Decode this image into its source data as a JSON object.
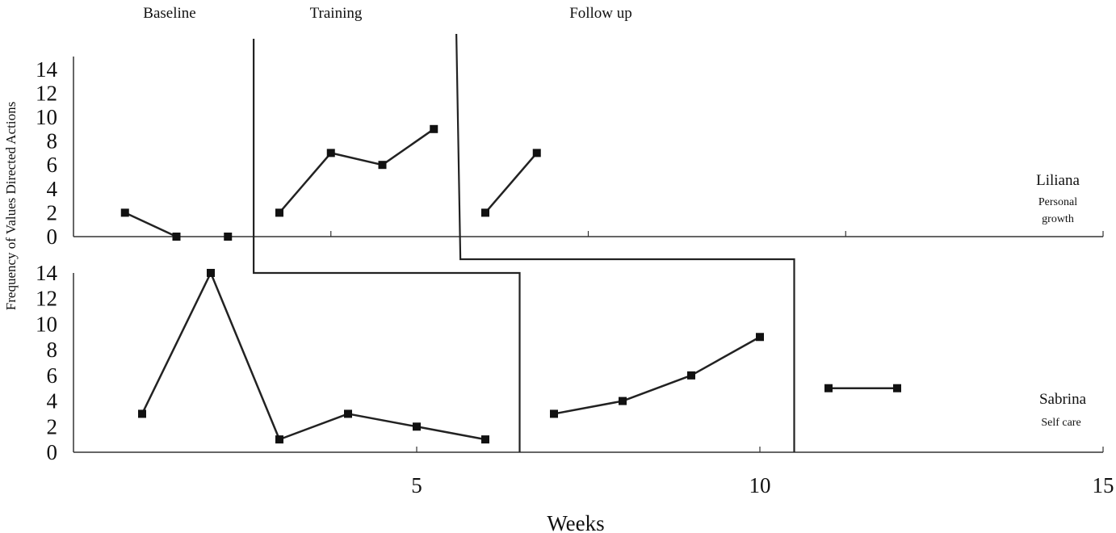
{
  "chart_data": {
    "type": "line",
    "phases": [
      "Baseline",
      "Training",
      "Follow up"
    ],
    "ylabel": "Frequency of Values Directed Actions",
    "xlabel": "Weeks",
    "panels": [
      {
        "participant": "Liliana",
        "value": "Personal growth",
        "value_lines": [
          "Personal",
          "growth"
        ],
        "ylim": [
          0,
          15
        ],
        "yticks": [
          0,
          2,
          4,
          6,
          8,
          10,
          12,
          14
        ],
        "ytick_labels": [
          "0",
          "2",
          "4",
          "6",
          "8",
          "10",
          "12",
          "14"
        ],
        "xlim": [
          0,
          20
        ],
        "xticks": [
          5,
          10,
          15,
          20
        ],
        "phase_changes": [
          3.5,
          7.5
        ],
        "segments": [
          {
            "phase": "Baseline",
            "x": [
              1,
              2,
              3
            ],
            "y": [
              2,
              0,
              0
            ],
            "connected": [
              true,
              false
            ]
          },
          {
            "phase": "Training",
            "x": [
              4,
              5,
              6,
              7
            ],
            "y": [
              2,
              7,
              6,
              9
            ],
            "connected": [
              true,
              true,
              true
            ]
          },
          {
            "phase": "Follow up",
            "x": [
              8,
              9
            ],
            "y": [
              2,
              7
            ],
            "connected": [
              true
            ]
          }
        ]
      },
      {
        "participant": "Sabrina",
        "value": "Self care",
        "ylim": [
          0,
          14
        ],
        "yticks": [
          0,
          2,
          4,
          6,
          8,
          10,
          12,
          14
        ],
        "ytick_labels": [
          "0",
          "2",
          "4",
          "6",
          "8",
          "10",
          "12",
          "14"
        ],
        "xlim": [
          0,
          15
        ],
        "xticks": [
          5,
          10,
          15
        ],
        "xtick_labels": [
          "5",
          "10",
          "15"
        ],
        "phase_changes": [
          6.5,
          10.5
        ],
        "segments": [
          {
            "phase": "Baseline",
            "x": [
              1,
              2,
              3,
              4,
              5,
              6
            ],
            "y": [
              3,
              14,
              1,
              3,
              2,
              1
            ],
            "connected": [
              true,
              true,
              true,
              true,
              true
            ]
          },
          {
            "phase": "Training",
            "x": [
              7,
              8,
              9,
              10
            ],
            "y": [
              3,
              4,
              6,
              9
            ],
            "connected": [
              true,
              true,
              true
            ]
          },
          {
            "phase": "Follow up",
            "x": [
              11,
              12
            ],
            "y": [
              5,
              5
            ],
            "connected": [
              true
            ]
          }
        ]
      }
    ]
  }
}
